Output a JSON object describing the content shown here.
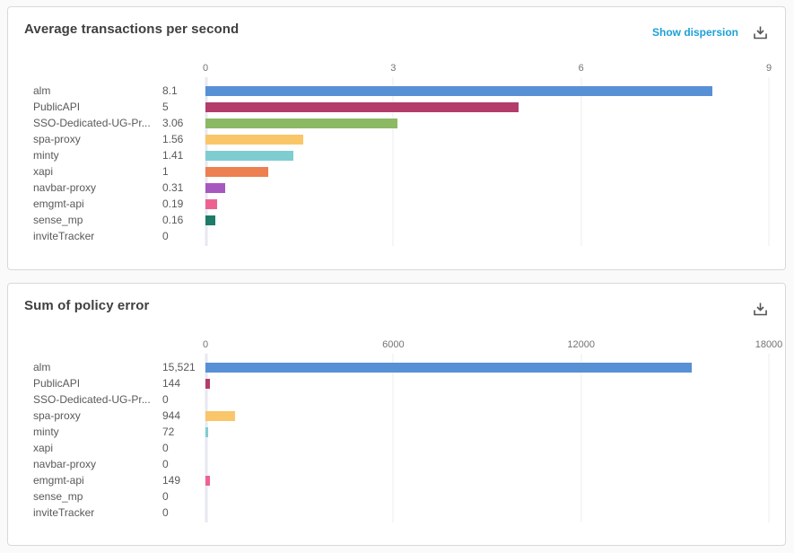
{
  "links": {
    "show_dispersion": "Show dispersion"
  },
  "icons": {
    "download": "download-icon"
  },
  "colors": {
    "link": "#1ca0d6",
    "title_text": "#404040",
    "label_text": "#595959",
    "tick_text": "#737373",
    "card_border": "#d9d9d9",
    "gridline": "#ececec",
    "zero_axis": "#e7e9f1"
  },
  "chart_data": [
    {
      "type": "bar",
      "orientation": "horizontal",
      "title": "Average transactions per second",
      "categories": [
        "alm",
        "PublicAPI",
        "SSO-Dedicated-UG-Pr...",
        "spa-proxy",
        "minty",
        "xapi",
        "navbar-proxy",
        "emgmt-api",
        "sense_mp",
        "inviteTracker"
      ],
      "values": [
        8.1,
        5,
        3.06,
        1.56,
        1.41,
        1,
        0.31,
        0.19,
        0.16,
        0
      ],
      "value_labels": [
        "8.1",
        "5",
        "3.06",
        "1.56",
        "1.41",
        "1",
        "0.31",
        "0.19",
        "0.16",
        "0"
      ],
      "bar_colors": [
        "#5890d6",
        "#b33c6b",
        "#8cb964",
        "#f9c669",
        "#7fcdd1",
        "#ec8050",
        "#a758be",
        "#ec6392",
        "#1e7b68",
        "#999999"
      ],
      "xlim": [
        0,
        9
      ],
      "xticks": [
        0,
        3,
        6,
        9
      ],
      "xtick_labels": [
        "0",
        "3",
        "6",
        "9"
      ],
      "grid": true,
      "legend": "none",
      "has_dispersion_link": true
    },
    {
      "type": "bar",
      "orientation": "horizontal",
      "title": "Sum of policy error",
      "categories": [
        "alm",
        "PublicAPI",
        "SSO-Dedicated-UG-Pr...",
        "spa-proxy",
        "minty",
        "xapi",
        "navbar-proxy",
        "emgmt-api",
        "sense_mp",
        "inviteTracker"
      ],
      "values": [
        15521,
        144,
        0,
        944,
        72,
        0,
        0,
        149,
        0,
        0
      ],
      "value_labels": [
        "15,521",
        "144",
        "0",
        "944",
        "72",
        "0",
        "0",
        "149",
        "0",
        "0"
      ],
      "bar_colors": [
        "#5890d6",
        "#b33c6b",
        "#8cb964",
        "#f9c669",
        "#7fcdd1",
        "#ec8050",
        "#a758be",
        "#ec6392",
        "#1e7b68",
        "#999999"
      ],
      "xlim": [
        0,
        18000
      ],
      "xticks": [
        0,
        6000,
        12000,
        18000
      ],
      "xtick_labels": [
        "0",
        "6000",
        "12000",
        "18000"
      ],
      "grid": true,
      "legend": "none",
      "has_dispersion_link": false
    }
  ]
}
